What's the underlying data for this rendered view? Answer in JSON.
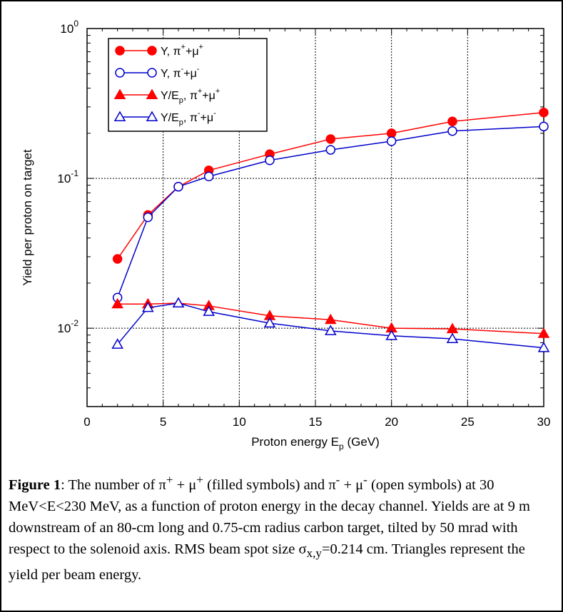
{
  "chart_data": {
    "type": "line",
    "ylabel": "Yield per proton on target",
    "xlabel": "Proton energy E_p (GeV)",
    "y_scale": "log",
    "xlim": [
      0,
      30
    ],
    "ylim": [
      0.003,
      1
    ],
    "grid": true,
    "legend_position": "top-left",
    "x_ticks": [
      "0",
      "5",
      "10",
      "15",
      "20",
      "25",
      "30"
    ],
    "y_ticks": [
      {
        "base": "10",
        "exp": "0",
        "value": 1
      },
      {
        "base": "10",
        "exp": "-1",
        "value": 0.1
      },
      {
        "base": "10",
        "exp": "-2",
        "value": 0.01
      }
    ],
    "x": [
      2,
      4,
      6,
      8,
      12,
      16,
      20,
      24,
      30
    ],
    "series": [
      {
        "legend": {
          "base": "Y, π",
          "sup1": "+",
          "mid": "+μ",
          "sup2": "+",
          "sub": ""
        },
        "color": "#ff0000",
        "marker": "circle",
        "filled": true,
        "values": [
          0.029,
          0.057,
          0.088,
          0.113,
          0.145,
          0.183,
          0.2,
          0.24,
          0.275
        ]
      },
      {
        "legend": {
          "base": "Y, π",
          "sup1": "-",
          "mid": "+μ",
          "sup2": "-",
          "sub": ""
        },
        "color": "#0000cc",
        "marker": "circle",
        "filled": false,
        "values": [
          0.016,
          0.055,
          0.088,
          0.103,
          0.132,
          0.155,
          0.177,
          0.207,
          0.222
        ]
      },
      {
        "legend": {
          "base": "Y/E",
          "sub": "p",
          "after": ", π",
          "sup1": "+",
          "mid": "+μ",
          "sup2": "+"
        },
        "color": "#ff0000",
        "marker": "triangle",
        "filled": true,
        "values": [
          0.0145,
          0.0145,
          0.0147,
          0.0141,
          0.0121,
          0.0114,
          0.01,
          0.0099,
          0.0092
        ]
      },
      {
        "legend": {
          "base": "Y/E",
          "sub": "p",
          "after": ", π",
          "sup1": "-",
          "mid": "+μ",
          "sup2": "-"
        },
        "color": "#0000cc",
        "marker": "triangle",
        "filled": false,
        "values": [
          0.0078,
          0.0137,
          0.0147,
          0.0129,
          0.0108,
          0.0096,
          0.0089,
          0.0085,
          0.0074
        ]
      }
    ]
  },
  "caption": {
    "label": "Figure 1",
    "pi_plus_sup": "+",
    "mu_plus_sup": "+",
    "pi_minus_sup": "-",
    "mu_minus_sup": "-",
    "part1": ":  The number of ",
    "part2": " (filled symbols) and ",
    "part3": " (open symbols) at 30 MeV<E<230 MeV, as a function of proton energy in the decay channel. Yields are at  9 m downstream of an 80-cm long and 0.75-cm radius carbon target, tilted by 50 mrad with respect to the solenoid axis. RMS beam spot size ",
    "sigma": "σ",
    "sigma_sub": "x,y",
    "part4": "=0.214 cm. Triangles represent the yield per beam energy.",
    "pi": "π",
    "mu": "μ",
    "plus_sign": " + "
  }
}
